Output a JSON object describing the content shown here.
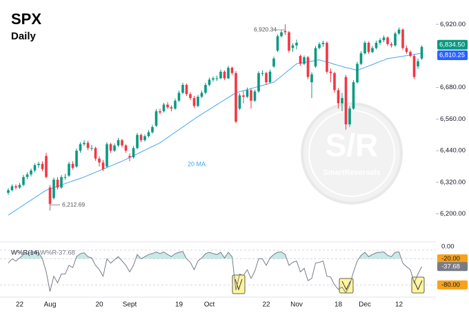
{
  "header": {
    "symbol": "SPX",
    "interval": "Daily"
  },
  "chart_data": [
    {
      "type": "candlestick",
      "categories": [
        null,
        null,
        null,
        "22",
        null,
        null,
        null,
        null,
        null,
        null,
        null,
        "Aug",
        null,
        null,
        null,
        null,
        null,
        null,
        null,
        null,
        null,
        null,
        null,
        null,
        "20",
        null,
        null,
        null,
        null,
        null,
        null,
        null,
        "Sept",
        null,
        null,
        null,
        null,
        null,
        null,
        null,
        null,
        null,
        null,
        null,
        null,
        "19",
        null,
        null,
        null,
        null,
        null,
        null,
        null,
        "Oct",
        null,
        null,
        null,
        null,
        null,
        null,
        null,
        null,
        null,
        null,
        null,
        null,
        null,
        null,
        "22",
        null,
        null,
        null,
        null,
        null,
        null,
        null,
        "Nov",
        null,
        null,
        null,
        null,
        null,
        null,
        null,
        null,
        null,
        null,
        "18",
        null,
        null,
        null,
        null,
        null,
        null,
        "Dec",
        null,
        null,
        null,
        null,
        null,
        null,
        null,
        null,
        "12",
        null,
        null,
        null,
        null,
        null,
        null
      ],
      "ohlc": [
        [
          6280,
          6298,
          6272,
          6290
        ],
        [
          6290,
          6312,
          6285,
          6305
        ],
        [
          6305,
          6312,
          6292,
          6300
        ],
        [
          6300,
          6318,
          6295,
          6310
        ],
        [
          6310,
          6348,
          6305,
          6340
        ],
        [
          6340,
          6358,
          6332,
          6350
        ],
        [
          6350,
          6372,
          6342,
          6365
        ],
        [
          6365,
          6392,
          6358,
          6385
        ],
        [
          6385,
          6398,
          6375,
          6390
        ],
        [
          6390,
          6400,
          6362,
          6370
        ],
        [
          6420,
          6432,
          6335,
          6340
        ],
        [
          6300,
          6310,
          6212.69,
          6238
        ],
        [
          6260,
          6338,
          6255,
          6330
        ],
        [
          6330,
          6340,
          6292,
          6300
        ],
        [
          6300,
          6348,
          6295,
          6340
        ],
        [
          6340,
          6352,
          6330,
          6340
        ],
        [
          6345,
          6398,
          6340,
          6390
        ],
        [
          6390,
          6400,
          6368,
          6375
        ],
        [
          6380,
          6448,
          6375,
          6440
        ],
        [
          6440,
          6472,
          6432,
          6465
        ],
        [
          6465,
          6480,
          6458,
          6470
        ],
        [
          6470,
          6478,
          6442,
          6450
        ],
        [
          6450,
          6462,
          6440,
          6450
        ],
        [
          6450,
          6455,
          6402,
          6410
        ],
        [
          6410,
          6418,
          6380,
          6395
        ],
        [
          6395,
          6405,
          6362,
          6370
        ],
        [
          6380,
          6472,
          6375,
          6465
        ],
        [
          6465,
          6470,
          6432,
          6440
        ],
        [
          6440,
          6468,
          6435,
          6460
        ],
        [
          6460,
          6488,
          6455,
          6480
        ],
        [
          6480,
          6485,
          6452,
          6460
        ],
        [
          6460,
          6465,
          6432,
          6440
        ],
        [
          6420,
          6430,
          6400,
          6415
        ],
        [
          6415,
          6458,
          6410,
          6450
        ],
        [
          6450,
          6508,
          6445,
          6500
        ],
        [
          6500,
          6505,
          6472,
          6480
        ],
        [
          6480,
          6502,
          6475,
          6495
        ],
        [
          6495,
          6518,
          6490,
          6510
        ],
        [
          6510,
          6538,
          6505,
          6530
        ],
        [
          6535,
          6598,
          6530,
          6590
        ],
        [
          6590,
          6600,
          6578,
          6585
        ],
        [
          6590,
          6622,
          6585,
          6615
        ],
        [
          6615,
          6625,
          6598,
          6605
        ],
        [
          6605,
          6612,
          6590,
          6600
        ],
        [
          6600,
          6638,
          6595,
          6630
        ],
        [
          6630,
          6668,
          6625,
          6660
        ],
        [
          6660,
          6698,
          6655,
          6690
        ],
        [
          6690,
          6695,
          6648,
          6655
        ],
        [
          6655,
          6662,
          6632,
          6640
        ],
        [
          6640,
          6648,
          6602,
          6610
        ],
        [
          6610,
          6652,
          6605,
          6645
        ],
        [
          6645,
          6668,
          6640,
          6660
        ],
        [
          6660,
          6698,
          6655,
          6690
        ],
        [
          6690,
          6718,
          6685,
          6710
        ],
        [
          6710,
          6722,
          6702,
          6715
        ],
        [
          6715,
          6725,
          6705,
          6715
        ],
        [
          6715,
          6748,
          6712,
          6740
        ],
        [
          6740,
          6745,
          6708,
          6715
        ],
        [
          6715,
          6762,
          6712,
          6755
        ],
        [
          6755,
          6760,
          6728,
          6735
        ],
        [
          6735,
          6742,
          6545,
          6550
        ],
        [
          6600,
          6658,
          6595,
          6650
        ],
        [
          6650,
          6668,
          6620,
          6645
        ],
        [
          6645,
          6680,
          6640,
          6670
        ],
        [
          6670,
          6678,
          6600,
          6630
        ],
        [
          6630,
          6672,
          6625,
          6665
        ],
        [
          6665,
          6742,
          6660,
          6735
        ],
        [
          6735,
          6745,
          6725,
          6735
        ],
        [
          6735,
          6740,
          6690,
          6700
        ],
        [
          6700,
          6748,
          6695,
          6740
        ],
        [
          6760,
          6798,
          6755,
          6790
        ],
        [
          6820,
          6882,
          6815,
          6875
        ],
        [
          6875,
          6898,
          6870,
          6890
        ],
        [
          6895,
          6920.34,
          6880,
          6890
        ],
        [
          6890,
          6895,
          6812,
          6820
        ],
        [
          6830,
          6848,
          6815,
          6840
        ],
        [
          6840,
          6862,
          6825,
          6850
        ],
        [
          6800,
          6805,
          6762,
          6770
        ],
        [
          6770,
          6802,
          6765,
          6795
        ],
        [
          6795,
          6800,
          6712,
          6720
        ],
        [
          6700,
          6738,
          6640,
          6730
        ],
        [
          6760,
          6838,
          6755,
          6830
        ],
        [
          6830,
          6852,
          6825,
          6845
        ],
        [
          6845,
          6858,
          6835,
          6850
        ],
        [
          6850,
          6855,
          6732,
          6740
        ],
        [
          6740,
          6752,
          6700,
          6735
        ],
        [
          6735,
          6740,
          6660,
          6670
        ],
        [
          6670,
          6678,
          6600,
          6620
        ],
        [
          6620,
          6660,
          6590,
          6640
        ],
        [
          6720,
          6728,
          6520,
          6540
        ],
        [
          6540,
          6610,
          6530,
          6600
        ],
        [
          6600,
          6708,
          6595,
          6700
        ],
        [
          6700,
          6778,
          6695,
          6770
        ],
        [
          6770,
          6818,
          6765,
          6810
        ],
        [
          6810,
          6858,
          6805,
          6850
        ],
        [
          6850,
          6855,
          6808,
          6815
        ],
        [
          6815,
          6838,
          6810,
          6830
        ],
        [
          6830,
          6858,
          6825,
          6850
        ],
        [
          6850,
          6868,
          6842,
          6860
        ],
        [
          6860,
          6878,
          6852,
          6870
        ],
        [
          6870,
          6875,
          6838,
          6845
        ],
        [
          6845,
          6852,
          6832,
          6840
        ],
        [
          6840,
          6892,
          6835,
          6885
        ],
        [
          6885,
          6908,
          6880,
          6900
        ],
        [
          6900,
          6905,
          6822,
          6830
        ],
        [
          6830,
          6840,
          6808,
          6815
        ],
        [
          6815,
          6822,
          6795,
          6800
        ],
        [
          6800,
          6805,
          6712,
          6720
        ],
        [
          6760,
          6790,
          6750,
          6780
        ],
        [
          6790,
          6840,
          6785,
          6834.5
        ]
      ],
      "up_color": "#089981",
      "down_color": "#f23645",
      "series": [
        {
          "name": "20 MA",
          "color": "#42a5f5",
          "values": [
            6195,
            6205,
            6214,
            6224,
            6233,
            6243,
            6252,
            6262,
            6271,
            6281,
            6290,
            6295,
            6300,
            6305,
            6310,
            6315,
            6320,
            6325,
            6330,
            6335,
            6340,
            6346,
            6352,
            6358,
            6364,
            6370,
            6376,
            6382,
            6388,
            6394,
            6400,
            6407,
            6414,
            6421,
            6428,
            6435,
            6442,
            6449,
            6456,
            6463,
            6470,
            6480,
            6490,
            6500,
            6510,
            6520,
            6530,
            6540,
            6550,
            6560,
            6570,
            6579,
            6588,
            6597,
            6606,
            6615,
            6624,
            6633,
            6642,
            6651,
            6660,
            6664,
            6668,
            6672,
            6676,
            6680,
            6684,
            6688,
            6692,
            6696,
            6700,
            6712,
            6723,
            6735,
            6747,
            6758,
            6770,
            6773,
            6775,
            6778,
            6780,
            6783,
            6785,
            6781,
            6777,
            6773,
            6768,
            6764,
            6760,
            6756,
            6753,
            6749,
            6745,
            6751,
            6756,
            6762,
            6767,
            6773,
            6779,
            6784,
            6790,
            6792,
            6794,
            6797,
            6799,
            6801,
            6803,
            6806,
            6808,
            6810.25
          ]
        }
      ],
      "ylim": [
        6120,
        6960
      ],
      "yticks": [
        {
          "value": 6920,
          "label": "6,920.00"
        },
        {
          "value": 6680,
          "label": "6,680.00"
        },
        {
          "value": 6560,
          "label": "6,560.00"
        },
        {
          "value": 6440,
          "label": "6,440.00"
        },
        {
          "value": 6320,
          "label": "6,320.00"
        },
        {
          "value": 6200,
          "label": "6,200.00"
        }
      ],
      "annotations": [
        {
          "label": "6,920.34",
          "value": 6920.34
        },
        {
          "label": "6,212.69",
          "value": 6212.69
        }
      ],
      "price_tags": [
        {
          "label": "6,834.50",
          "value": 6834.5,
          "color": "#089981"
        },
        {
          "label": "6,810.25",
          "value": 6810.25,
          "color": "#2962ff"
        }
      ],
      "watermark": {
        "mark": "S/R",
        "name": "SmartReversals"
      }
    },
    {
      "type": "line",
      "title": "W%R(14)",
      "series": [
        {
          "name": "W%R",
          "color": "#787b86",
          "values": [
            -30,
            -20,
            -25,
            -18,
            -10,
            -8,
            -5,
            -4,
            -6,
            -20,
            -50,
            -95,
            -60,
            -75,
            -55,
            -55,
            -35,
            -40,
            -15,
            -8,
            -6,
            -15,
            -18,
            -35,
            -45,
            -60,
            -20,
            -30,
            -22,
            -15,
            -25,
            -35,
            -50,
            -35,
            -10,
            -20,
            -15,
            -10,
            -8,
            -4,
            -8,
            -4,
            -10,
            -15,
            -8,
            -5,
            -3,
            -20,
            -28,
            -45,
            -25,
            -18,
            -8,
            -5,
            -8,
            -10,
            -5,
            -18,
            -5,
            -15,
            -92,
            -55,
            -58,
            -45,
            -65,
            -48,
            -20,
            -20,
            -35,
            -18,
            -10,
            -5,
            -4,
            -10,
            -35,
            -28,
            -25,
            -50,
            -42,
            -70,
            -65,
            -30,
            -28,
            -25,
            -60,
            -62,
            -80,
            -90,
            -85,
            -98,
            -80,
            -50,
            -25,
            -12,
            -5,
            -15,
            -10,
            -6,
            -5,
            -4,
            -12,
            -15,
            -5,
            -4,
            -30,
            -38,
            -45,
            -75,
            -55,
            -37.68
          ]
        }
      ],
      "fill_color": "#b2dfdb",
      "ylim": [
        -100,
        0
      ],
      "yticks": [
        {
          "value": 0,
          "label": "0.00"
        },
        {
          "value": -20,
          "label": "-20.00"
        },
        {
          "value": -80,
          "label": "-80.00"
        }
      ],
      "level_color": "#f7a21b"
    }
  ]
}
